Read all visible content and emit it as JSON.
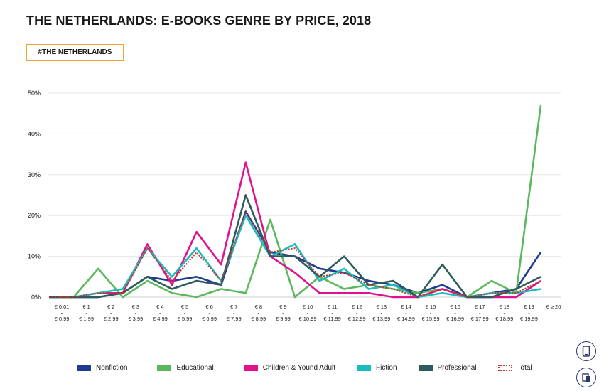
{
  "page": {
    "title": "THE NETHERLANDS: E-BOOKS GENRE BY PRICE, 2018",
    "tag": "#THE NETHERLANDS"
  },
  "side_buttons": [
    {
      "icon": "mobile-icon"
    },
    {
      "icon": "book-icon"
    }
  ],
  "chart_data": {
    "type": "line",
    "ylim": [
      0,
      50
    ],
    "yticks": [
      "0%",
      "10%",
      "20%",
      "30%",
      "40%",
      "50%"
    ],
    "categories": [
      [
        "€ 0,01",
        "-",
        "€ 0,99"
      ],
      [
        "€ 1",
        "-",
        "€ 1,99"
      ],
      [
        "€ 2",
        "-",
        "€ 2,99"
      ],
      [
        "€ 3",
        "-",
        "€ 3,99"
      ],
      [
        "€ 4",
        "-",
        "€ 4,99"
      ],
      [
        "€ 5",
        "-",
        "€ 5,99"
      ],
      [
        "€ 6",
        "-",
        "€ 6,99"
      ],
      [
        "€ 7",
        "-",
        "€ 7,99"
      ],
      [
        "€ 8",
        "-",
        "€ 8,99"
      ],
      [
        "€ 9",
        "-",
        "€ 9,99"
      ],
      [
        "€ 10",
        "-",
        "€ 10,99"
      ],
      [
        "€ 11",
        "-",
        "€ 11,99"
      ],
      [
        "€ 12",
        "-",
        "€ 12,99"
      ],
      [
        "€ 13",
        "-",
        "€ 13,99"
      ],
      [
        "€ 14",
        "-",
        "€ 14,99"
      ],
      [
        "€ 15",
        "-",
        "€ 15,99"
      ],
      [
        "€ 16",
        "-",
        "€ 16,99"
      ],
      [
        "€ 17",
        "-",
        "€ 17,99"
      ],
      [
        "€ 18",
        "-",
        "€ 18,99"
      ],
      [
        "€ 19",
        "-",
        "€ 19,99"
      ],
      [
        "€ ≥ 20"
      ]
    ],
    "series": [
      {
        "name": "Nonfiction",
        "color": "#1f3a8f",
        "style": "solid",
        "values": [
          0,
          0,
          0,
          1,
          5,
          4,
          5,
          3,
          21,
          11,
          10,
          7,
          6,
          4,
          3,
          1,
          3,
          0,
          1,
          2,
          11
        ]
      },
      {
        "name": "Educational",
        "color": "#5cb85c",
        "style": "solid",
        "values": [
          0,
          0,
          7,
          0,
          4,
          1,
          0,
          2,
          1,
          19,
          0,
          5,
          2,
          3,
          2,
          1,
          2,
          0,
          4,
          1,
          47
        ]
      },
      {
        "name": "Children & Yound Adult",
        "color": "#e0138c",
        "style": "solid",
        "values": [
          0,
          0,
          1,
          1,
          13,
          3,
          16,
          8,
          33,
          10,
          6,
          1,
          1,
          1,
          0,
          0,
          2,
          0,
          0,
          0,
          4
        ]
      },
      {
        "name": "Fiction",
        "color": "#1bbcc0",
        "style": "solid",
        "values": [
          0,
          0,
          1,
          2,
          12,
          5,
          12,
          4,
          20,
          10,
          13,
          4,
          7,
          2,
          3,
          0,
          1,
          0,
          1,
          1,
          2
        ]
      },
      {
        "name": "Professional",
        "color": "#2d5a5e",
        "style": "solid",
        "values": [
          0,
          0,
          0,
          1,
          5,
          2,
          4,
          3,
          25,
          10,
          10,
          5,
          10,
          3,
          4,
          0,
          8,
          0,
          0,
          2,
          5
        ]
      },
      {
        "name": "Total",
        "color": "#c0392b",
        "style": "dotted",
        "values": [
          0,
          0,
          1,
          1,
          12,
          4,
          11,
          4,
          21,
          11,
          12,
          5,
          6,
          3,
          2,
          0,
          2,
          0,
          1,
          1,
          4
        ]
      }
    ]
  }
}
